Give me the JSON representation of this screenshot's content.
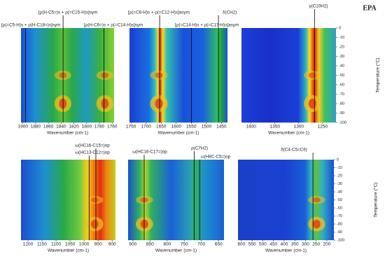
{
  "label": "EPA",
  "chart_data": [
    {
      "type": "heatmap",
      "xlabel": "Wavenumber (cm-1)",
      "xlim": [
        1903,
        1757
      ],
      "xticks": [
        1900,
        1880,
        1860,
        1840,
        1820,
        1800,
        1780,
        1760
      ],
      "annotations": [
        {
          "text": "[ρ(=C5-H)s + ρ(H-C18=)s]sym",
          "x": 1896
        },
        {
          "text": "[ρ(H-C5=)s + ρ(=C15-H)s]sym",
          "x": 1837
        },
        {
          "text": "[ρ(H-C6=)s + ρ(=C14-H)s]sym",
          "x": 1773
        }
      ]
    },
    {
      "type": "heatmap",
      "xlabel": "Wavenumber (cm-1)",
      "xlim": [
        1755,
        1430
      ],
      "xticks": [
        1750,
        1700,
        1650,
        1600,
        1550,
        1500,
        1450
      ],
      "annotations": [
        {
          "text": "[ρ(=C6-H)s + ρ(=C12-H)s]asym",
          "x": 1655
        },
        {
          "text": "[ρ(=C14-H)s + ρ(=C17-H)s]asym",
          "x": 1550
        },
        {
          "text": "δ(CH2)",
          "x": 1460
        }
      ]
    },
    {
      "type": "heatmap",
      "xlabel": "Wavenumber (cm-1)",
      "xlim": [
        1420,
        1222
      ],
      "xticks": [
        1400,
        1350,
        1300,
        1250
      ],
      "ylabel": "Temperature (°C)",
      "ylim": [
        0,
        -100
      ],
      "yticks": [
        0,
        -10,
        -20,
        -30,
        -40,
        -50,
        -60,
        -70,
        -80,
        -90,
        -100
      ],
      "annotations": [
        {
          "text": "γ(C10H2)",
          "x": 1267
        }
      ]
    },
    {
      "type": "heatmap",
      "xlabel": "Wavenumber (cm-1)",
      "xlim": [
        1225,
        888
      ],
      "xticks": [
        1200,
        1150,
        1100,
        1050,
        1000,
        950,
        900
      ],
      "annotations": [
        {
          "text": "ω(HC16-C15=)op",
          "x": 958
        },
        {
          "text": "ω(HC13-C12=)op",
          "x": 982
        }
      ]
    },
    {
      "type": "heatmap",
      "xlabel": "Wavenumber (cm-1)",
      "xlim": [
        914,
        634
      ],
      "xticks": [
        900,
        850,
        800,
        750,
        700,
        650
      ],
      "annotations": [
        {
          "text": "ω(HC16-C17=)op",
          "x": 867
        },
        {
          "text": "ρ(C7H2)",
          "x": 721
        },
        {
          "text": "ω(H8C-C5=)op",
          "x": 705
        }
      ]
    },
    {
      "type": "heatmap",
      "xlabel": "Wavenumber (cm-1)",
      "xlim": [
        616,
        167
      ],
      "xticks": [
        600,
        550,
        500,
        450,
        400,
        350,
        300,
        250,
        200
      ],
      "ylabel": "Temperature (°C)",
      "ylim": [
        0,
        -100
      ],
      "yticks": [
        0,
        -10,
        -20,
        -30,
        -40,
        -50,
        -60,
        -70,
        -80,
        -90,
        -100
      ],
      "annotations": [
        {
          "text": "δ(C4-C5=C6)",
          "x": 265
        }
      ]
    }
  ]
}
